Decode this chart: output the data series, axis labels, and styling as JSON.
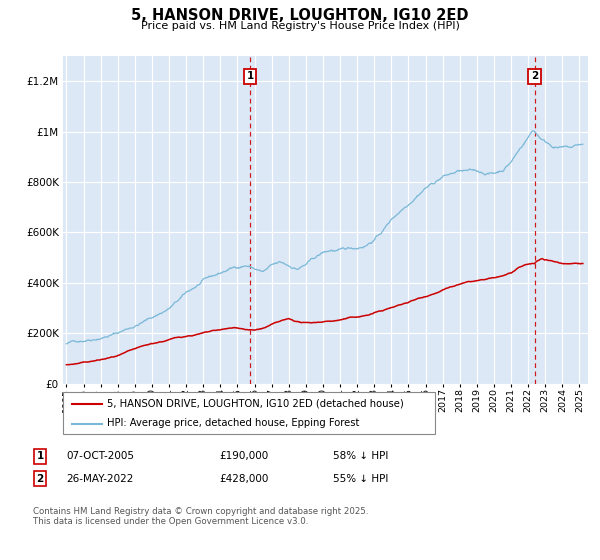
{
  "title": "5, HANSON DRIVE, LOUGHTON, IG10 2ED",
  "subtitle": "Price paid vs. HM Land Registry's House Price Index (HPI)",
  "ylim": [
    0,
    1300000
  ],
  "yticks": [
    0,
    200000,
    400000,
    600000,
    800000,
    1000000,
    1200000
  ],
  "xlim_start": 1994.8,
  "xlim_end": 2025.5,
  "hpi_color": "#7ab8d8",
  "price_color": "#cc0000",
  "bg_color": "#dce8f5",
  "legend1": "5, HANSON DRIVE, LOUGHTON, IG10 2ED (detached house)",
  "legend2": "HPI: Average price, detached house, Epping Forest",
  "sale1_date": "07-OCT-2005",
  "sale1_price": "£190,000",
  "sale1_note": "58% ↓ HPI",
  "sale1_x": 2005.75,
  "sale2_date": "26-MAY-2022",
  "sale2_price": "£428,000",
  "sale2_note": "55% ↓ HPI",
  "sale2_x": 2022.38,
  "footer": "Contains HM Land Registry data © Crown copyright and database right 2025.\nThis data is licensed under the Open Government Licence v3.0."
}
